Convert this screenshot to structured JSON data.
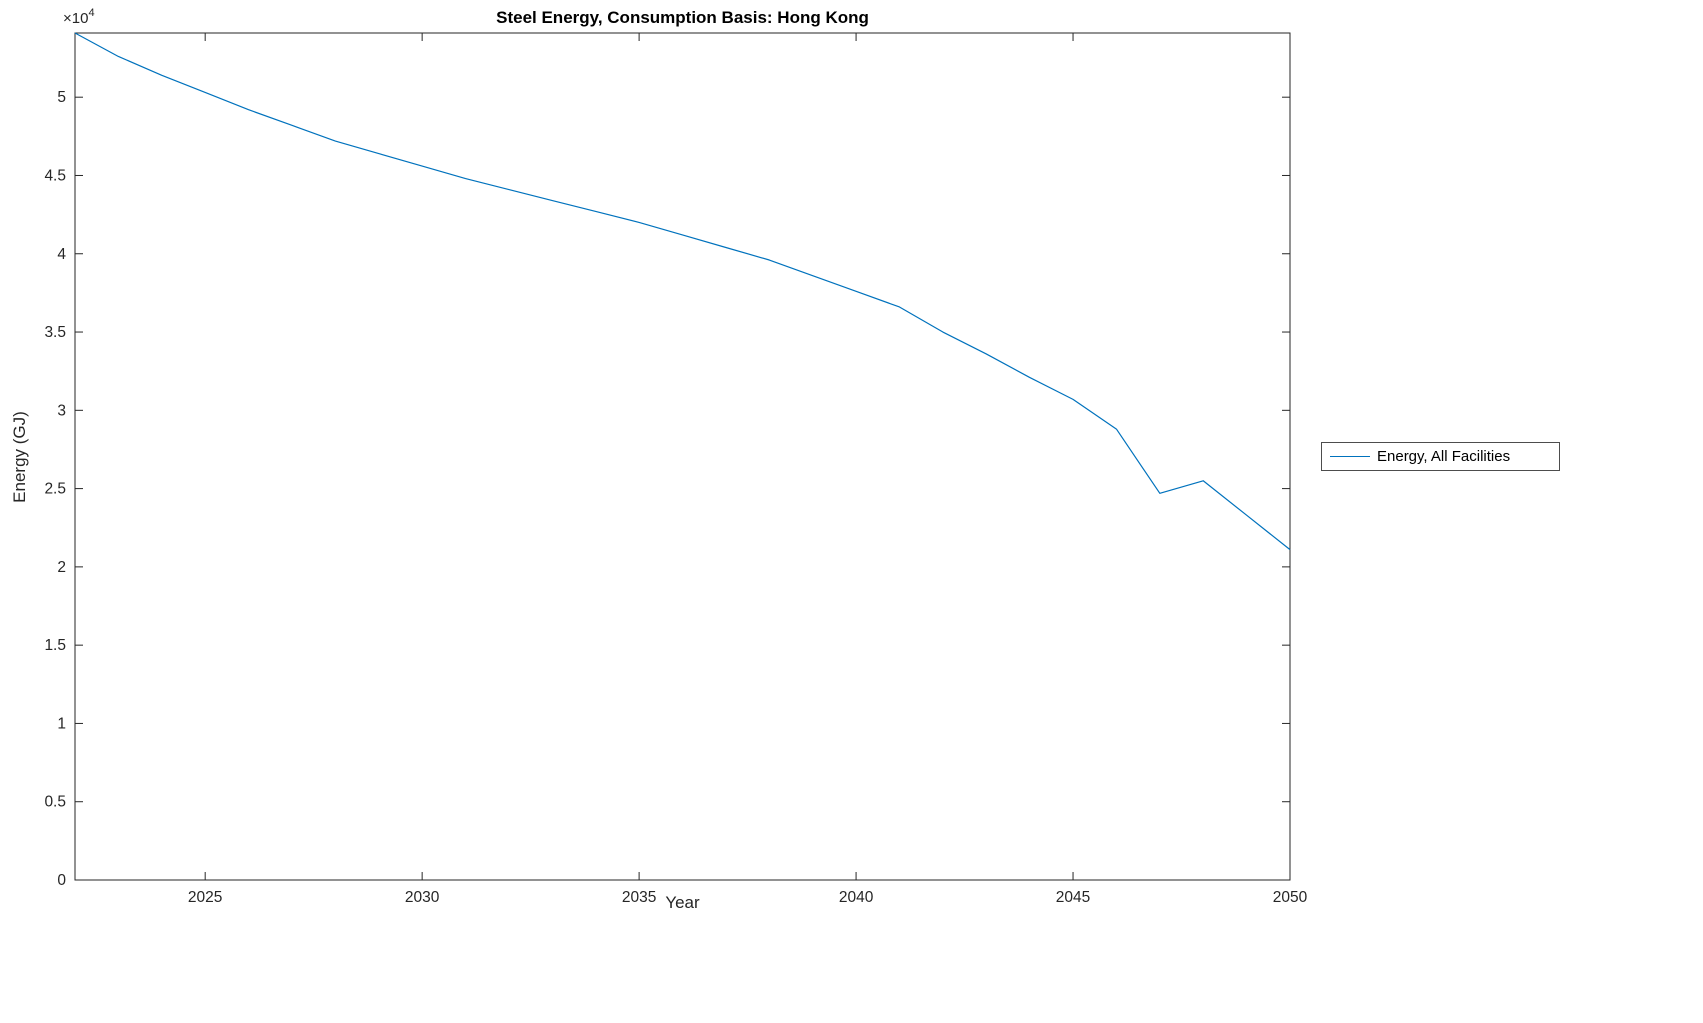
{
  "figure": {
    "background": "#ffffff",
    "axis_color": "#262626",
    "line_color": "#0072BD"
  },
  "legend": {
    "entries": [
      {
        "label": "Energy, All Facilities",
        "color": "#0072BD"
      }
    ]
  },
  "chart_data": {
    "type": "line",
    "title": "Steel Energy, Consumption Basis: Hong Kong",
    "xlabel": "Year",
    "ylabel": "Energy (GJ)",
    "y_multiplier_base": "×10",
    "y_multiplier_exp": "4",
    "xlim": [
      2022,
      2050
    ],
    "ylim": [
      0,
      5.41
    ],
    "xticks": [
      2025,
      2030,
      2035,
      2040,
      2045,
      2050
    ],
    "yticks": [
      0,
      0.5,
      1,
      1.5,
      2,
      2.5,
      3,
      3.5,
      4,
      4.5,
      5
    ],
    "grid": false,
    "legend_position": "right-outside",
    "series": [
      {
        "name": "Energy, All Facilities",
        "color": "#0072BD",
        "x": [
          2022,
          2023,
          2024,
          2025,
          2026,
          2027,
          2028,
          2029,
          2030,
          2031,
          2032,
          2033,
          2034,
          2035,
          2036,
          2037,
          2038,
          2039,
          2040,
          2041,
          2042,
          2043,
          2044,
          2045,
          2046,
          2047,
          2048,
          2049,
          2050
        ],
        "values": [
          5.41,
          5.26,
          5.14,
          5.03,
          4.92,
          4.82,
          4.72,
          4.64,
          4.56,
          4.48,
          4.41,
          4.34,
          4.27,
          4.2,
          4.12,
          4.04,
          3.96,
          3.86,
          3.76,
          3.66,
          3.5,
          3.36,
          3.21,
          3.07,
          2.88,
          2.47,
          2.55,
          2.33,
          2.11
        ],
        "units": "×10^4 GJ"
      }
    ]
  }
}
